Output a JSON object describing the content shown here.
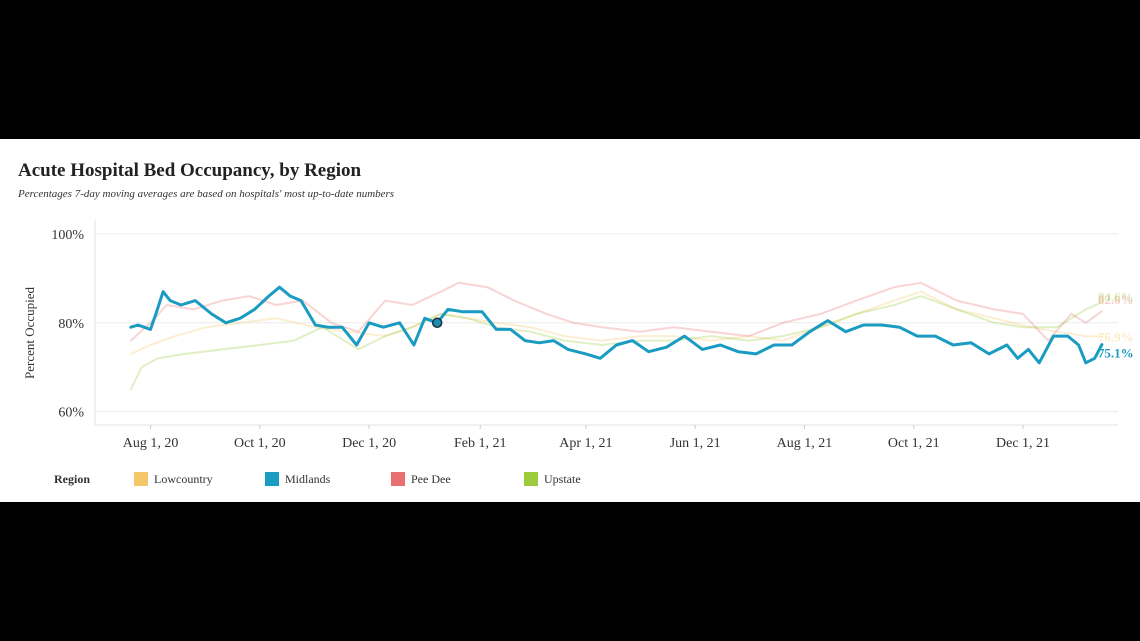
{
  "title": "Acute Hospital Bed Occupancy, by Region",
  "subtitle": "Percentages 7-day moving averages are based on hospitals' most up-to-date numbers",
  "legend_title": "Region",
  "chart_data": {
    "type": "line",
    "title": "Acute Hospital Bed Occupancy, by Region",
    "subtitle": "Percentages 7-day moving averages are based on hospitals' most up-to-date numbers",
    "xlabel": "",
    "ylabel": "Percent Occupied",
    "ylim": [
      57,
      102
    ],
    "xlim": [
      "2020-07-01",
      "2022-01-23"
    ],
    "y_ticks": [
      60,
      80,
      100
    ],
    "y_tick_labels": [
      "60%",
      "80%",
      "100%"
    ],
    "x_ticks": [
      "2020-08-01",
      "2020-10-01",
      "2020-12-01",
      "2021-02-01",
      "2021-04-01",
      "2021-06-01",
      "2021-08-01",
      "2021-10-01",
      "2021-12-01"
    ],
    "x_tick_labels": [
      "Aug 1, 20",
      "Oct 1, 20",
      "Dec 1, 20",
      "Feb 1, 21",
      "Apr 1, 21",
      "Jun 1, 21",
      "Aug 1, 21",
      "Oct 1, 21",
      "Dec 1, 21"
    ],
    "grid": "horizontal",
    "legend_position": "bottom",
    "highlighted_series": "Midlands",
    "marker": {
      "series": "Midlands",
      "x": "2021-01-08",
      "y": 80
    },
    "series": [
      {
        "name": "Midlands",
        "color": "#1a9bc2",
        "end_label": "75.1%",
        "x": [
          "2020-07-21",
          "2020-07-25",
          "2020-08-01",
          "2020-08-04",
          "2020-08-08",
          "2020-08-12",
          "2020-08-18",
          "2020-08-26",
          "2020-09-04",
          "2020-09-12",
          "2020-09-20",
          "2020-09-28",
          "2020-10-06",
          "2020-10-12",
          "2020-10-18",
          "2020-10-24",
          "2020-11-01",
          "2020-11-08",
          "2020-11-16",
          "2020-11-24",
          "2020-12-01",
          "2020-12-09",
          "2020-12-18",
          "2020-12-26",
          "2021-01-01",
          "2021-01-08",
          "2021-01-14",
          "2021-01-22",
          "2021-02-02",
          "2021-02-10",
          "2021-02-18",
          "2021-02-26",
          "2021-03-06",
          "2021-03-14",
          "2021-03-22",
          "2021-04-01",
          "2021-04-09",
          "2021-04-18",
          "2021-04-27",
          "2021-05-06",
          "2021-05-16",
          "2021-05-26",
          "2021-06-05",
          "2021-06-15",
          "2021-06-25",
          "2021-07-05",
          "2021-07-15",
          "2021-07-25",
          "2021-08-04",
          "2021-08-14",
          "2021-08-24",
          "2021-09-03",
          "2021-09-13",
          "2021-09-23",
          "2021-10-03",
          "2021-10-13",
          "2021-10-23",
          "2021-11-02",
          "2021-11-12",
          "2021-11-22",
          "2021-11-28",
          "2021-12-04",
          "2021-12-10",
          "2021-12-18",
          "2021-12-26",
          "2022-01-01",
          "2022-01-05",
          "2022-01-10",
          "2022-01-14"
        ],
        "values": [
          79,
          79.5,
          78.5,
          82,
          87,
          85,
          84,
          85,
          82,
          80,
          81,
          83,
          86,
          88,
          86,
          85,
          79.5,
          79,
          79,
          75,
          80,
          79,
          80,
          75,
          81,
          80,
          83,
          82.5,
          82.5,
          78.5,
          78.5,
          76,
          75.5,
          76,
          74,
          73,
          72,
          75,
          76,
          73.5,
          74.5,
          77,
          74,
          75,
          73.5,
          73,
          75,
          75,
          78,
          80.5,
          78,
          79.5,
          79.5,
          79,
          77,
          77,
          75,
          75.5,
          73,
          75,
          72,
          74,
          71,
          77,
          77,
          75,
          71,
          72,
          75.1
        ]
      },
      {
        "name": "Lowcountry",
        "color": "#f5c76b",
        "end_label": "76.9%",
        "x": [
          "2020-07-21",
          "2020-08-01",
          "2020-08-15",
          "2020-09-01",
          "2020-09-20",
          "2020-10-10",
          "2020-11-01",
          "2020-11-20",
          "2020-12-10",
          "2020-12-25",
          "2021-01-10",
          "2021-01-25",
          "2021-02-10",
          "2021-03-01",
          "2021-03-20",
          "2021-04-10",
          "2021-05-01",
          "2021-05-20",
          "2021-06-10",
          "2021-07-01",
          "2021-07-20",
          "2021-08-10",
          "2021-08-30",
          "2021-09-20",
          "2021-10-05",
          "2021-10-25",
          "2021-11-15",
          "2021-12-05",
          "2021-12-20",
          "2022-01-05",
          "2022-01-14"
        ],
        "values": [
          73,
          75,
          77,
          79,
          80,
          81,
          79,
          78,
          77,
          79,
          82,
          81,
          80,
          79,
          77,
          76,
          77,
          77,
          76,
          77,
          76,
          79,
          82,
          85,
          87,
          83,
          81,
          79,
          78,
          77,
          76.9
        ]
      },
      {
        "name": "Pee Dee",
        "color": "#e76f6f",
        "end_label": "82.6%",
        "x": [
          "2020-07-21",
          "2020-08-01",
          "2020-08-10",
          "2020-08-25",
          "2020-09-10",
          "2020-09-25",
          "2020-10-10",
          "2020-10-25",
          "2020-11-10",
          "2020-11-25",
          "2020-12-10",
          "2020-12-25",
          "2021-01-10",
          "2021-01-20",
          "2021-02-05",
          "2021-02-20",
          "2021-03-10",
          "2021-03-25",
          "2021-04-10",
          "2021-05-01",
          "2021-05-20",
          "2021-06-10",
          "2021-07-01",
          "2021-07-20",
          "2021-08-10",
          "2021-08-30",
          "2021-09-20",
          "2021-10-05",
          "2021-10-25",
          "2021-11-15",
          "2021-12-01",
          "2021-12-15",
          "2021-12-28",
          "2022-01-05",
          "2022-01-14"
        ],
        "values": [
          76,
          80,
          84,
          83,
          85,
          86,
          84,
          85,
          80,
          78,
          85,
          84,
          87,
          89,
          88,
          85,
          82,
          80,
          79,
          78,
          79,
          78,
          77,
          80,
          82,
          85,
          88,
          89,
          85,
          83,
          82,
          76,
          82,
          80,
          82.6
        ]
      },
      {
        "name": "Upstate",
        "color": "#9ccb3b",
        "end_label": "84.6%",
        "x": [
          "2020-07-21",
          "2020-07-27",
          "2020-08-05",
          "2020-08-20",
          "2020-09-10",
          "2020-10-01",
          "2020-10-20",
          "2020-11-05",
          "2020-11-25",
          "2020-12-10",
          "2020-12-25",
          "2021-01-10",
          "2021-01-25",
          "2021-02-10",
          "2021-03-01",
          "2021-03-20",
          "2021-04-10",
          "2021-05-01",
          "2021-05-20",
          "2021-06-10",
          "2021-07-01",
          "2021-07-20",
          "2021-08-10",
          "2021-08-30",
          "2021-09-20",
          "2021-10-05",
          "2021-10-25",
          "2021-11-15",
          "2021-12-01",
          "2021-12-20",
          "2022-01-05",
          "2022-01-14"
        ],
        "values": [
          65,
          70,
          72,
          73,
          74,
          75,
          76,
          79,
          74,
          77,
          79,
          82,
          81,
          79,
          78,
          76,
          75,
          76,
          76,
          77,
          76,
          77,
          79,
          82,
          84,
          86,
          83,
          80,
          79,
          79,
          83,
          84.6
        ]
      }
    ]
  }
}
